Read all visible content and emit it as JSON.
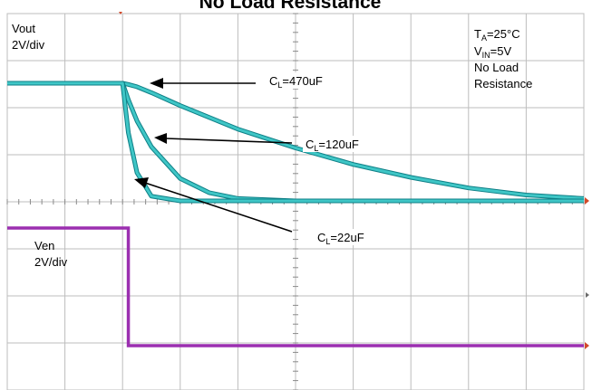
{
  "chart": {
    "title": "No Load Resistance",
    "vout_label_line1": "Vout",
    "vout_label_line2": "2V/div",
    "ven_label_line1": "Ven",
    "ven_label_line2": "2V/div",
    "conditions": {
      "ta_main": "T",
      "ta_sub": "A",
      "ta_value": "=25°C",
      "vin_main": "V",
      "vin_sub": "IN",
      "vin_value": "=5V",
      "line3": "No Load",
      "line4": "Resistance"
    },
    "annotations": [
      {
        "prefix": "C",
        "sub": "L",
        "value": "=470uF"
      },
      {
        "prefix": "C",
        "sub": "L",
        "value": "=120uF"
      },
      {
        "prefix": "C",
        "sub": "L",
        "value": "=22uF"
      }
    ],
    "colors": {
      "vout_trace": "#3fc6c6",
      "vout_trace_dark": "#0e7f86",
      "ven_trace": "#9b2fb0",
      "grid": "#bdbdbd",
      "axis_tick": "#8a8a8a"
    }
  },
  "chart_data": {
    "type": "line",
    "title": "No Load Resistance",
    "x_divisions": 10,
    "y_divisions": 8,
    "y_scale": "2V/div",
    "x": [
      -2.0,
      -1.5,
      -1.0,
      -0.5,
      0.0,
      0.1,
      0.25,
      0.5,
      1.0,
      1.5,
      2.0,
      3.0,
      4.0,
      5.0,
      6.0,
      7.0,
      8.0
    ],
    "series": [
      {
        "name": "CL=470uF",
        "channel": "Vout",
        "values": [
          5.0,
          5.0,
          5.0,
          5.0,
          5.0,
          4.95,
          4.85,
          4.6,
          4.05,
          3.55,
          3.05,
          2.25,
          1.55,
          1.0,
          0.55,
          0.25,
          0.1
        ]
      },
      {
        "name": "CL=120uF",
        "channel": "Vout",
        "values": [
          5.0,
          5.0,
          5.0,
          5.0,
          5.0,
          4.3,
          3.4,
          2.3,
          0.95,
          0.35,
          0.1,
          0.0,
          0.0,
          0.0,
          0.0,
          0.0,
          0.0
        ]
      },
      {
        "name": "CL=22uF",
        "channel": "Vout",
        "values": [
          5.0,
          5.0,
          5.0,
          5.0,
          5.0,
          2.9,
          1.2,
          0.2,
          0.0,
          0.0,
          0.0,
          0.0,
          0.0,
          0.0,
          0.0,
          0.0,
          0.0
        ]
      },
      {
        "name": "Ven",
        "channel": "Ven",
        "values": [
          5.0,
          5.0,
          5.0,
          5.0,
          5.0,
          0.0,
          0.0,
          0.0,
          0.0,
          0.0,
          0.0,
          0.0,
          0.0,
          0.0,
          0.0,
          0.0,
          0.0
        ]
      }
    ]
  }
}
